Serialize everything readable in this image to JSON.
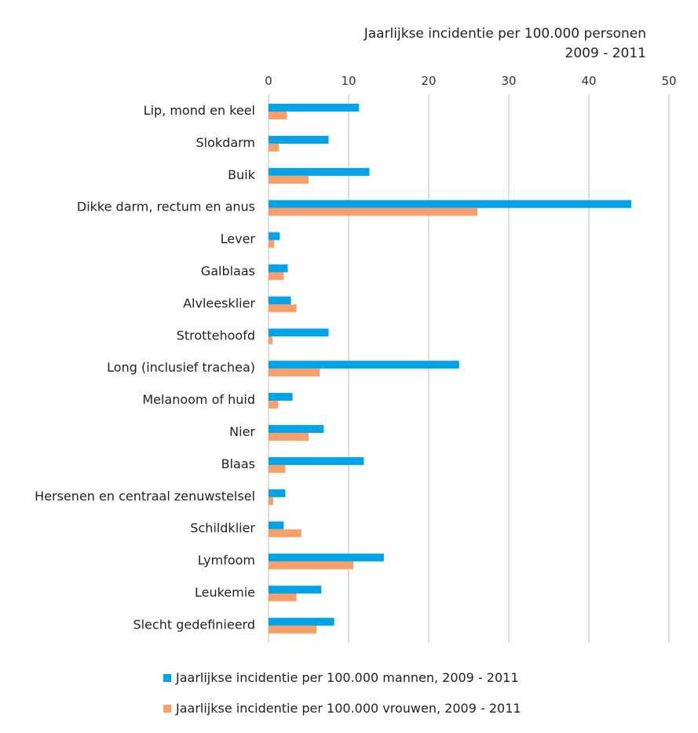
{
  "chart_data": {
    "type": "bar",
    "orientation": "horizontal",
    "axis_title_line1": "Jaarlijkse incidentie per 100.000 personen",
    "axis_title_line2": "2009 - 2011",
    "xlim": [
      0,
      50
    ],
    "x_ticks": [
      0,
      10,
      20,
      30,
      40,
      50
    ],
    "x_tick_labels": [
      "0",
      "10",
      "20",
      "30",
      "40",
      "50"
    ],
    "x_axis_position": "top",
    "grid": "vertical",
    "categories": [
      "Lip, mond en keel",
      "Slokdarm",
      "Buik",
      "Dikke darm, rectum en anus",
      "Lever",
      "Galblaas",
      "Alvleesklier",
      "Strottehoofd",
      "Long (inclusief trachea)",
      "Melanoom of huid",
      "Nier",
      "Blaas",
      "Hersenen en centraal zenuwstelsel",
      "Schildklier",
      "Lymfoom",
      "Leukemie",
      "Slecht gedefinieerd"
    ],
    "series": [
      {
        "name": "Jaarlijkse incidentie per 100.000 mannen, 2009 - 2011",
        "color": "#00a2e8",
        "values": [
          11.3,
          7.5,
          12.6,
          45.3,
          1.4,
          2.4,
          2.8,
          7.5,
          23.8,
          3.0,
          6.9,
          11.9,
          2.1,
          1.9,
          14.4,
          6.6,
          8.2
        ]
      },
      {
        "name": "Jaarlijkse incidentie per 100.000 vrouwen, 2009 - 2011",
        "color": "#f9a06a",
        "values": [
          2.3,
          1.3,
          5.0,
          26.1,
          0.7,
          1.9,
          3.5,
          0.5,
          6.4,
          1.2,
          5.0,
          2.1,
          0.6,
          4.1,
          10.6,
          3.5,
          6.0
        ]
      }
    ],
    "legend_position": "bottom",
    "gridline_color": "#d4d4d4"
  }
}
